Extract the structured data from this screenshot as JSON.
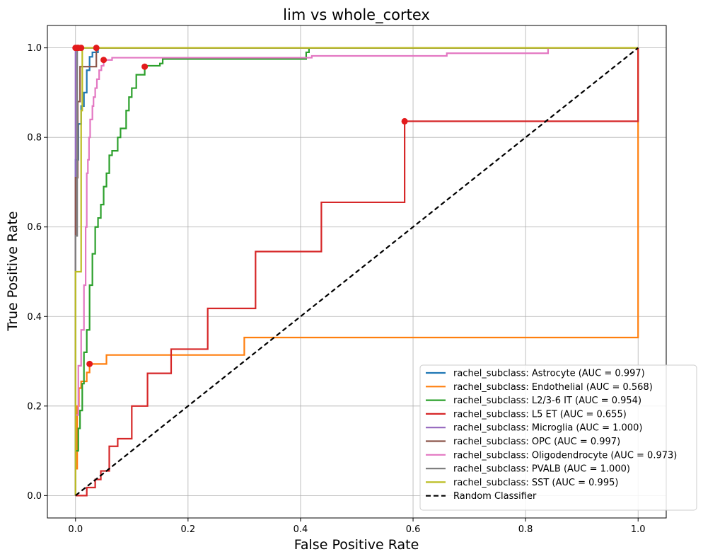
{
  "chart_data": {
    "type": "line",
    "title": "lim vs whole_cortex",
    "xlabel": "False Positive Rate",
    "ylabel": "True Positive Rate",
    "xlim": [
      -0.05,
      1.05
    ],
    "ylim": [
      -0.05,
      1.05
    ],
    "xticks": [
      "0.0",
      "0.2",
      "0.4",
      "0.6",
      "0.8",
      "1.0"
    ],
    "yticks": [
      "0.0",
      "0.2",
      "0.4",
      "0.6",
      "0.8",
      "1.0"
    ],
    "grid": true,
    "legend_position": "lower-right",
    "series": [
      {
        "name": "rachel_subclass: Astrocyte (AUC = 0.997)",
        "color": "#1f77b4",
        "x": [
          0,
          0,
          0.005,
          0.005,
          0.01,
          0.01,
          0.015,
          0.015,
          0.02,
          0.02,
          0.025,
          0.025,
          0.03,
          0.03,
          0.04,
          0.04,
          1.0
        ],
        "y": [
          0,
          0.75,
          0.75,
          0.83,
          0.83,
          0.87,
          0.87,
          0.9,
          0.9,
          0.95,
          0.95,
          0.98,
          0.98,
          0.99,
          0.99,
          1.0,
          1.0
        ],
        "marker": [
          0.005,
          1.0
        ]
      },
      {
        "name": "rachel_subclass: Endothelial (AUC = 0.568)",
        "color": "#ff7f0e",
        "x": [
          0,
          0,
          0.003,
          0.003,
          0.006,
          0.006,
          0.01,
          0.01,
          0.02,
          0.02,
          0.025,
          0.025,
          0.055,
          0.055,
          0.3,
          0.3,
          1.0,
          1.0
        ],
        "y": [
          0,
          0.06,
          0.06,
          0.2,
          0.2,
          0.24,
          0.24,
          0.255,
          0.255,
          0.275,
          0.275,
          0.294,
          0.294,
          0.314,
          0.314,
          0.353,
          0.353,
          1.0
        ],
        "marker": [
          0.025,
          0.294
        ]
      },
      {
        "name": "rachel_subclass: L2/3-6 IT (AUC = 0.954)",
        "color": "#2ca02c",
        "x": [
          0,
          0,
          0.005,
          0.005,
          0.008,
          0.008,
          0.012,
          0.012,
          0.015,
          0.015,
          0.02,
          0.02,
          0.025,
          0.025,
          0.03,
          0.03,
          0.035,
          0.035,
          0.04,
          0.04,
          0.045,
          0.045,
          0.05,
          0.05,
          0.055,
          0.055,
          0.06,
          0.06,
          0.065,
          0.065,
          0.075,
          0.075,
          0.08,
          0.08,
          0.09,
          0.09,
          0.095,
          0.095,
          0.1,
          0.1,
          0.108,
          0.108,
          0.123,
          0.123,
          0.15,
          0.15,
          0.155,
          0.155,
          0.16,
          0.16,
          0.41,
          0.41,
          0.415,
          0.415,
          1.0
        ],
        "y": [
          0,
          0.1,
          0.1,
          0.15,
          0.15,
          0.19,
          0.19,
          0.25,
          0.25,
          0.32,
          0.32,
          0.37,
          0.37,
          0.47,
          0.47,
          0.54,
          0.54,
          0.6,
          0.6,
          0.62,
          0.62,
          0.65,
          0.65,
          0.69,
          0.69,
          0.72,
          0.72,
          0.76,
          0.76,
          0.77,
          0.77,
          0.8,
          0.8,
          0.82,
          0.82,
          0.86,
          0.86,
          0.89,
          0.89,
          0.91,
          0.91,
          0.94,
          0.94,
          0.96,
          0.96,
          0.965,
          0.965,
          0.975,
          0.975,
          0.975,
          0.975,
          0.99,
          0.99,
          1.0,
          1.0
        ],
        "marker": [
          0.123,
          0.958
        ]
      },
      {
        "name": "rachel_subclass: L5 ET (AUC = 0.655)",
        "color": "#d62728",
        "x": [
          0,
          0.02,
          0.02,
          0.035,
          0.035,
          0.045,
          0.045,
          0.06,
          0.06,
          0.075,
          0.075,
          0.1,
          0.1,
          0.128,
          0.128,
          0.17,
          0.17,
          0.235,
          0.235,
          0.32,
          0.32,
          0.437,
          0.437,
          0.585,
          0.585,
          1.0,
          1.0
        ],
        "y": [
          0,
          0,
          0.018,
          0.018,
          0.036,
          0.036,
          0.055,
          0.055,
          0.11,
          0.11,
          0.127,
          0.127,
          0.2,
          0.2,
          0.273,
          0.273,
          0.327,
          0.327,
          0.418,
          0.418,
          0.545,
          0.545,
          0.655,
          0.655,
          0.836,
          0.836,
          1.0
        ],
        "marker": [
          0.585,
          0.836
        ]
      },
      {
        "name": "rachel_subclass: Microglia (AUC = 1.000)",
        "color": "#9467bd",
        "x": [
          0,
          0,
          1.0
        ],
        "y": [
          0,
          1.0,
          1.0
        ],
        "marker": [
          0,
          1.0
        ]
      },
      {
        "name": "rachel_subclass: OPC (AUC = 0.997)",
        "color": "#8c564b",
        "x": [
          0,
          0,
          0.004,
          0.004,
          0.008,
          0.008,
          0.037,
          0.037,
          1.0
        ],
        "y": [
          0,
          0.71,
          0.71,
          0.88,
          0.88,
          0.958,
          0.958,
          1.0,
          1.0
        ],
        "marker": [
          0.037,
          1.0
        ]
      },
      {
        "name": "rachel_subclass: Oligodendrocyte (AUC = 0.973)",
        "color": "#e377c2",
        "x": [
          0,
          0,
          0.005,
          0.005,
          0.01,
          0.01,
          0.015,
          0.015,
          0.018,
          0.018,
          0.02,
          0.02,
          0.022,
          0.022,
          0.024,
          0.024,
          0.026,
          0.026,
          0.03,
          0.03,
          0.032,
          0.032,
          0.035,
          0.035,
          0.038,
          0.038,
          0.042,
          0.042,
          0.046,
          0.046,
          0.05,
          0.05,
          0.065,
          0.065,
          0.42,
          0.42,
          0.66,
          0.66,
          0.84,
          0.84,
          1.0
        ],
        "y": [
          0,
          0.18,
          0.18,
          0.29,
          0.29,
          0.37,
          0.37,
          0.47,
          0.47,
          0.6,
          0.6,
          0.72,
          0.72,
          0.75,
          0.75,
          0.8,
          0.8,
          0.84,
          0.84,
          0.87,
          0.87,
          0.89,
          0.89,
          0.91,
          0.91,
          0.93,
          0.93,
          0.95,
          0.95,
          0.96,
          0.96,
          0.973,
          0.973,
          0.978,
          0.978,
          0.982,
          0.982,
          0.988,
          0.988,
          1.0,
          1.0
        ],
        "marker": [
          0.05,
          0.973
        ]
      },
      {
        "name": "rachel_subclass: PVALB (AUC = 1.000)",
        "color": "#7f7f7f",
        "x": [
          0,
          0,
          0.003,
          0.003,
          1.0
        ],
        "y": [
          0,
          0.58,
          0.58,
          1.0,
          1.0
        ],
        "marker": [
          0.003,
          1.0
        ]
      },
      {
        "name": "rachel_subclass: SST (AUC = 0.995)",
        "color": "#bcbd22",
        "x": [
          0,
          0,
          0.003,
          0.003,
          0.01,
          0.01,
          0.012,
          0.012,
          1.0
        ],
        "y": [
          0,
          0.5,
          0.5,
          0.5,
          0.5,
          0.86,
          0.86,
          1.0,
          1.0
        ],
        "marker": [
          0.01,
          1.0
        ]
      }
    ],
    "baseline": {
      "name": "Random Classifier",
      "color": "#000000",
      "x": [
        0,
        1
      ],
      "y": [
        0,
        1
      ]
    }
  }
}
